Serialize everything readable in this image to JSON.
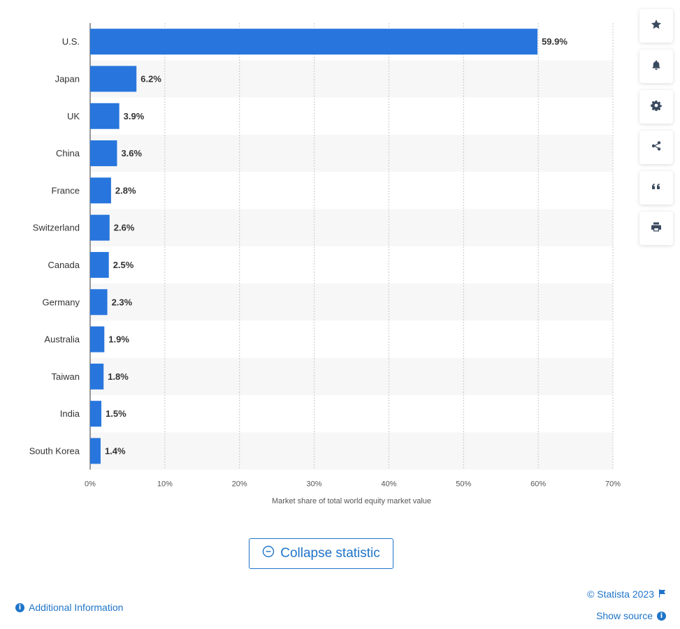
{
  "chart_data": {
    "type": "bar",
    "orientation": "horizontal",
    "categories": [
      "U.S.",
      "Japan",
      "UK",
      "China",
      "France",
      "Switzerland",
      "Canada",
      "Germany",
      "Australia",
      "Taiwan",
      "India",
      "South Korea"
    ],
    "values": [
      59.9,
      6.2,
      3.9,
      3.6,
      2.8,
      2.6,
      2.5,
      2.3,
      1.9,
      1.8,
      1.5,
      1.4
    ],
    "value_labels": [
      "59.9%",
      "6.2%",
      "3.9%",
      "3.6%",
      "2.8%",
      "2.6%",
      "2.5%",
      "2.3%",
      "1.9%",
      "1.8%",
      "1.5%",
      "1.4%"
    ],
    "xlabel": "Market share of total world equity market value",
    "xlim": [
      0,
      70
    ],
    "xticks": [
      0,
      10,
      20,
      30,
      40,
      50,
      60,
      70
    ],
    "xtick_labels": [
      "0%",
      "10%",
      "20%",
      "30%",
      "40%",
      "50%",
      "60%",
      "70%"
    ],
    "bar_color": "#2876dd",
    "grid": true,
    "alternating_row_shading": true
  },
  "toolbar": {
    "buttons": [
      "star-icon",
      "bell-icon",
      "gear-icon",
      "share-icon",
      "quote-icon",
      "print-icon"
    ]
  },
  "collapse": {
    "label": "Collapse statistic"
  },
  "footer": {
    "copyright": "© Statista 2023",
    "show_source": "Show source",
    "additional_info": "Additional Information"
  },
  "colors": {
    "accent": "#1f74c9",
    "bar": "#2876dd",
    "row_shade": "#f7f7f7"
  }
}
